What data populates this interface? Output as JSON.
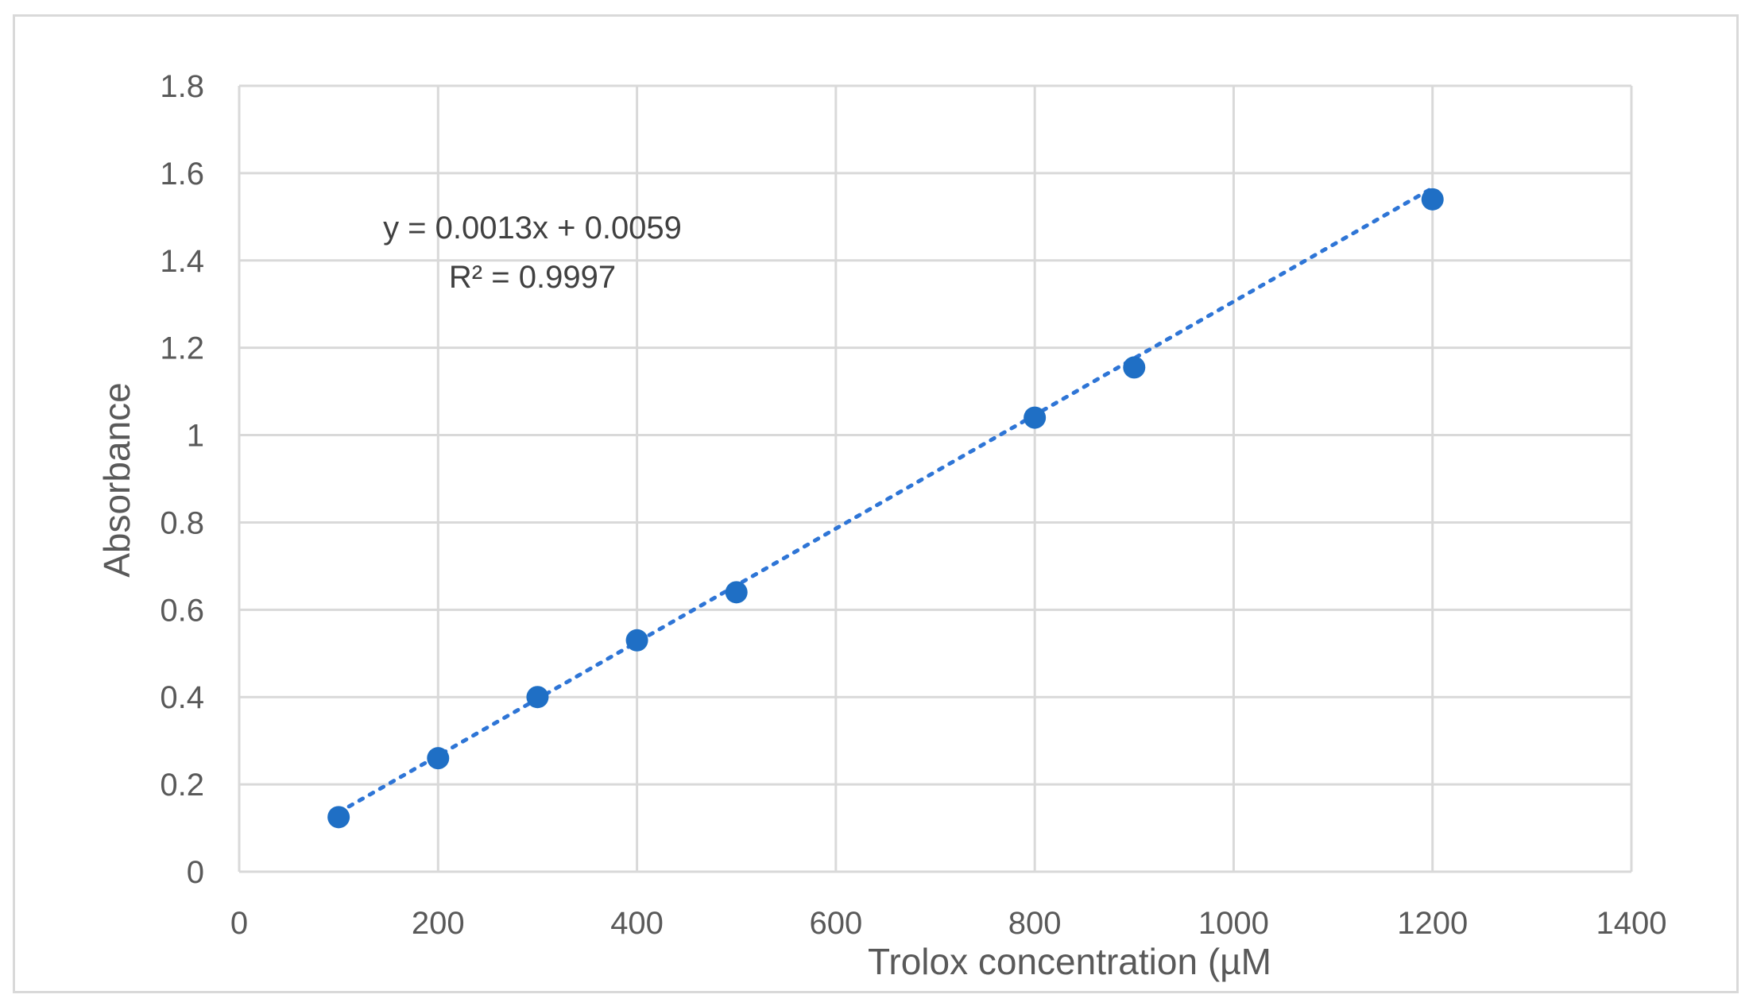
{
  "chart_data": {
    "type": "scatter",
    "x": [
      100,
      200,
      300,
      400,
      500,
      800,
      900,
      1200
    ],
    "y": [
      0.125,
      0.26,
      0.4,
      0.53,
      0.64,
      1.04,
      1.155,
      1.54
    ],
    "xlabel": "Trolox concentration (µM",
    "ylabel": "Absorbance",
    "xlim": [
      0,
      1400
    ],
    "ylim": [
      0,
      1.8
    ],
    "xticks": [
      "0",
      "200",
      "400",
      "600",
      "800",
      "1000",
      "1200",
      "1400"
    ],
    "yticks": [
      "0",
      "0.2",
      "0.4",
      "0.6",
      "0.8",
      "1",
      "1.2",
      "1.4",
      "1.6",
      "1.8"
    ],
    "grid": true,
    "trendline": {
      "style": "dotted",
      "slope": 0.0013,
      "intercept": 0.0059
    },
    "annotations": [
      "y = 0.0013x + 0.0059",
      "R² = 0.9997"
    ],
    "colors": {
      "marker": "#1f6fc5",
      "trendline": "#2e75d6",
      "grid": "#d9d9d9",
      "text": "#595959"
    }
  }
}
